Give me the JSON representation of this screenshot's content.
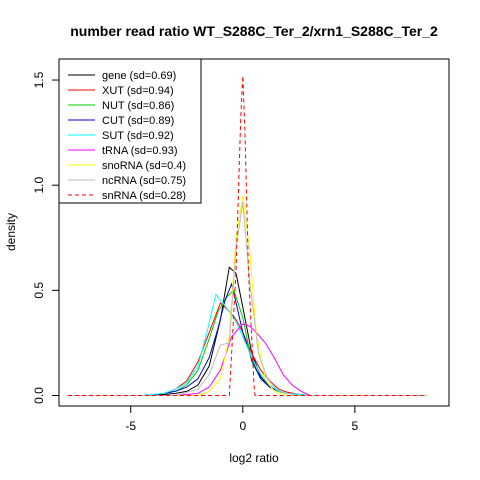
{
  "chart_data": {
    "type": "line",
    "title": "number read ratio WT_S288C_Ter_2/xrn1_S288C_Ter_2",
    "xlabel": "log2 ratio",
    "ylabel": "density",
    "xlim": [
      -8.2,
      9.2
    ],
    "ylim": [
      -0.05,
      1.6
    ],
    "xticks": [
      -5,
      0,
      5
    ],
    "yticks": [
      0.0,
      0.5,
      1.0,
      1.5
    ],
    "xtick_labels": [
      "-5",
      "0",
      "5"
    ],
    "ytick_labels": [
      "0.0",
      "0.5",
      "1.0",
      "1.5"
    ],
    "legend_position": "top-left",
    "series": [
      {
        "name": "gene (sd=0.69)",
        "color": "#000000",
        "dash": false,
        "x": [
          -7.8,
          -4,
          -3,
          -2.5,
          -2,
          -1.5,
          -1.0,
          -0.6,
          -0.3,
          0,
          0.4,
          0.8,
          1.2,
          1.6,
          2,
          2.5,
          3,
          8.2
        ],
        "y": [
          0,
          0,
          0.01,
          0.02,
          0.05,
          0.14,
          0.36,
          0.61,
          0.58,
          0.42,
          0.2,
          0.09,
          0.04,
          0.02,
          0.01,
          0.005,
          0,
          0
        ]
      },
      {
        "name": "XUT (sd=0.94)",
        "color": "#ff0000",
        "dash": false,
        "x": [
          -7.8,
          -4.5,
          -3.5,
          -3,
          -2.5,
          -2,
          -1.5,
          -1.0,
          -0.6,
          -0.3,
          0,
          0.4,
          0.8,
          1.2,
          1.6,
          2,
          2.5,
          3,
          8.2
        ],
        "y": [
          0,
          0,
          0.01,
          0.03,
          0.07,
          0.16,
          0.3,
          0.44,
          0.4,
          0.36,
          0.3,
          0.2,
          0.12,
          0.07,
          0.03,
          0.015,
          0.005,
          0,
          0
        ]
      },
      {
        "name": "NUT (sd=0.86)",
        "color": "#00cc00",
        "dash": false,
        "x": [
          -7.8,
          -4,
          -3,
          -2.5,
          -2,
          -1.5,
          -1.1,
          -0.7,
          -0.4,
          0,
          0.4,
          0.8,
          1.2,
          1.6,
          2,
          2.5,
          3,
          8.2
        ],
        "y": [
          0,
          0,
          0.02,
          0.05,
          0.12,
          0.27,
          0.4,
          0.47,
          0.5,
          0.37,
          0.16,
          0.08,
          0.04,
          0.02,
          0.01,
          0.005,
          0,
          0
        ]
      },
      {
        "name": "CUT (sd=0.89)",
        "color": "#0000cc",
        "dash": false,
        "x": [
          -7.8,
          -4,
          -3,
          -2.5,
          -2,
          -1.5,
          -1.1,
          -0.8,
          -0.5,
          -0.3,
          0,
          0.4,
          0.8,
          1.2,
          1.6,
          2,
          2.5,
          3,
          8.2
        ],
        "y": [
          0,
          0,
          0.02,
          0.04,
          0.08,
          0.18,
          0.32,
          0.45,
          0.53,
          0.44,
          0.3,
          0.17,
          0.08,
          0.04,
          0.02,
          0.01,
          0.005,
          0,
          0
        ]
      },
      {
        "name": "SUT (sd=0.92)",
        "color": "#00ffff",
        "dash": false,
        "x": [
          -7.8,
          -4.5,
          -3.5,
          -3,
          -2.5,
          -2,
          -1.6,
          -1.2,
          -0.9,
          -0.6,
          -0.3,
          0,
          0.4,
          0.8,
          1.2,
          1.6,
          2,
          2.5,
          3,
          8.2
        ],
        "y": [
          0,
          0,
          0.01,
          0.03,
          0.06,
          0.14,
          0.3,
          0.48,
          0.44,
          0.4,
          0.35,
          0.28,
          0.18,
          0.1,
          0.05,
          0.02,
          0.01,
          0.005,
          0,
          0
        ]
      },
      {
        "name": "tRNA (sd=0.93)",
        "color": "#ff00ff",
        "dash": false,
        "x": [
          -7.8,
          -3,
          -2,
          -1.5,
          -1,
          -0.5,
          0,
          0.3,
          0.6,
          1,
          1.4,
          1.8,
          2.2,
          2.6,
          3,
          8.2
        ],
        "y": [
          0,
          0,
          0.01,
          0.04,
          0.12,
          0.28,
          0.34,
          0.33,
          0.3,
          0.25,
          0.18,
          0.1,
          0.05,
          0.02,
          0,
          0
        ]
      },
      {
        "name": "snoRNA (sd=0.4)",
        "color": "#ffff00",
        "dash": false,
        "x": [
          -7.8,
          -2,
          -1.5,
          -1,
          -0.6,
          -0.3,
          0,
          0.3,
          0.6,
          1,
          1.4,
          2,
          8.2
        ],
        "y": [
          0,
          0,
          0.02,
          0.08,
          0.28,
          0.75,
          0.95,
          0.7,
          0.3,
          0.08,
          0.02,
          0,
          0
        ]
      },
      {
        "name": "ncRNA (sd=0.75)",
        "color": "#bbbbbb",
        "dash": false,
        "x": [
          -7.8,
          -3,
          -2,
          -1.5,
          -1.0,
          -0.6,
          -0.3,
          0,
          0.3,
          0.7,
          1.1,
          1.5,
          2,
          2.5,
          3,
          8.2
        ],
        "y": [
          0,
          0,
          0.03,
          0.1,
          0.24,
          0.25,
          0.7,
          0.92,
          0.55,
          0.2,
          0.08,
          0.03,
          0.01,
          0,
          0,
          0
        ]
      },
      {
        "name": "snRNA (sd=0.28)",
        "color": "#ff0000",
        "dash": true,
        "x": [
          -7.8,
          -0.6,
          -0.55,
          -0.3,
          -0.1,
          0,
          0.1,
          0.25,
          0.5,
          0.55,
          8.2
        ],
        "y": [
          0,
          0,
          0.1,
          0.6,
          1.3,
          1.52,
          1.25,
          0.6,
          0.05,
          0,
          0
        ]
      }
    ]
  }
}
